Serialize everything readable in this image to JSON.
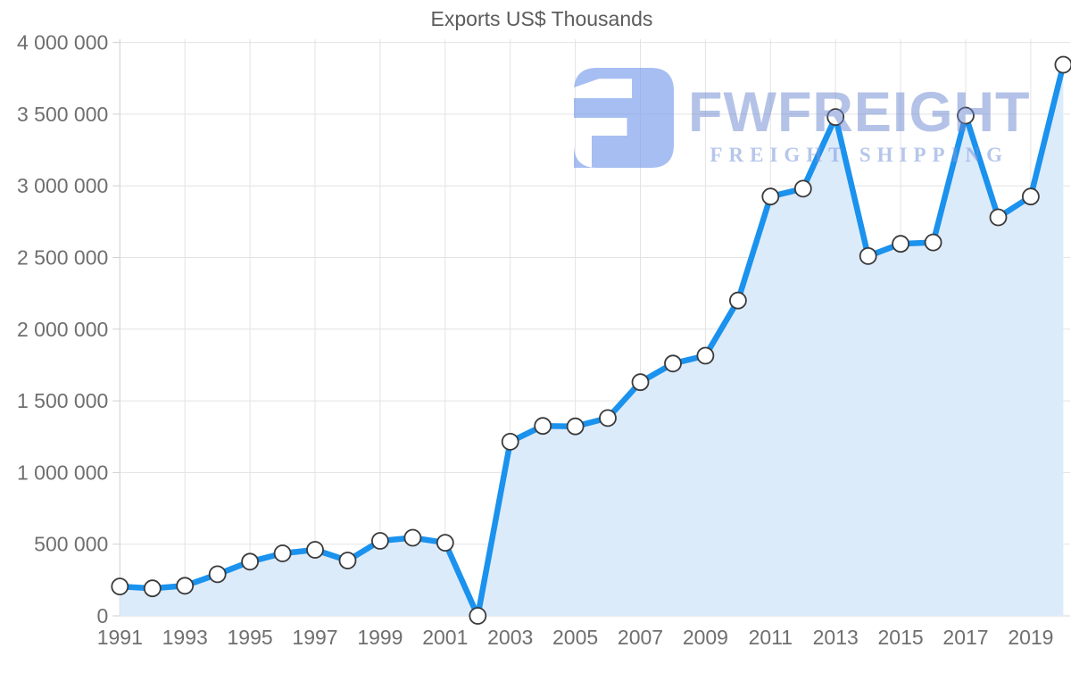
{
  "title": "Exports US$ Thousands",
  "watermark": {
    "wordmark": "FWFREIGHT",
    "subtitle": "FREIGHT SHIPPING"
  },
  "colors": {
    "line": "#1a92ee",
    "area_fill": "#dcebfa",
    "grid": "#e3e3e3",
    "axis_line": "#d6d6d6",
    "tick": "#cfcfcf",
    "axis_text": "#6f6f6f",
    "title_text": "#5c5c5c",
    "marker_fill": "#ffffff",
    "marker_stroke": "#3a3a3a",
    "watermark_mark": "rgba(132,165,235,0.72)"
  },
  "chart_data": {
    "type": "area",
    "title": "Exports US$ Thousands",
    "x": [
      1991,
      1992,
      1993,
      1994,
      1995,
      1996,
      1997,
      1998,
      1999,
      2000,
      2001,
      2002,
      2003,
      2004,
      2005,
      2006,
      2007,
      2008,
      2009,
      2010,
      2011,
      2012,
      2013,
      2014,
      2015,
      2016,
      2017,
      2018,
      2019,
      2020
    ],
    "series": [
      {
        "name": "Exports US$ Thousands",
        "values": [
          205000,
          192000,
          210000,
          290000,
          378000,
          436000,
          461000,
          386000,
          523000,
          545000,
          510000,
          0,
          1215000,
          1325000,
          1322000,
          1380000,
          1630000,
          1760000,
          1815000,
          2200000,
          2925000,
          2980000,
          3480000,
          2510000,
          2595000,
          2605000,
          3490000,
          2780000,
          2925000,
          3845000
        ]
      }
    ],
    "xlabel": "",
    "ylabel": "",
    "ylim": [
      0,
      4000000
    ],
    "y_ticks": [
      0,
      500000,
      1000000,
      1500000,
      2000000,
      2500000,
      3000000,
      3500000,
      4000000
    ],
    "y_tick_labels": [
      "0",
      "500 000",
      "1 000 000",
      "1 500 000",
      "2 000 000",
      "2 500 000",
      "3 000 000",
      "3 500 000",
      "4 000 000"
    ],
    "x_tick_labels": [
      "1991",
      "1993",
      "1995",
      "1997",
      "1999",
      "2001",
      "2003",
      "2005",
      "2007",
      "2009",
      "2011",
      "2013",
      "2015",
      "2017",
      "2019"
    ],
    "grid": true,
    "legend": false,
    "markers": true
  }
}
